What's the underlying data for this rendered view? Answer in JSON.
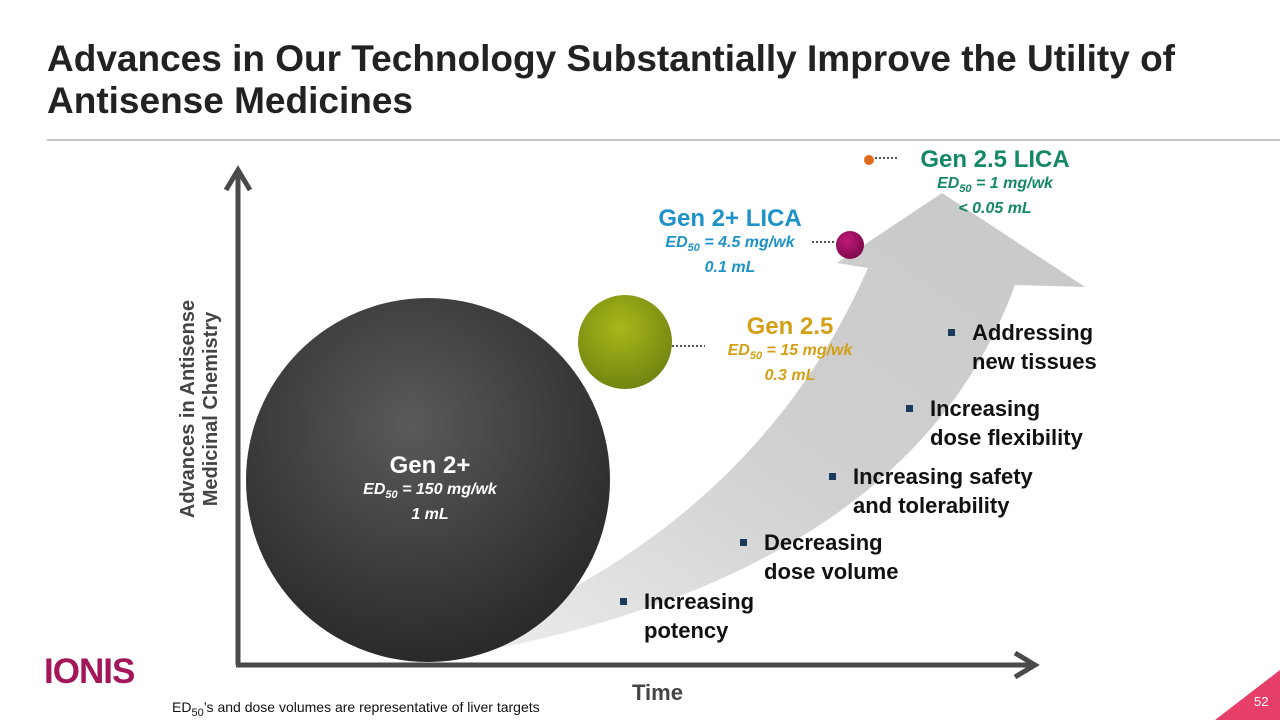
{
  "title": "Advances in Our Technology Substantially Improve the Utility of Antisense Medicines",
  "axes": {
    "y_label": "Advances in Antisense Medicinal Chemistry",
    "x_label": "Time"
  },
  "generations": [
    {
      "name": "Gen 2+",
      "ed50_prefix": "ED",
      "ed50_sub": "50",
      "ed50_value": " = 150 mg/wk",
      "volume": "1 mL",
      "color": "#ffffff",
      "circle_color": "#3c3c3e"
    },
    {
      "name": "Gen 2.5",
      "ed50_prefix": "ED",
      "ed50_sub": "50",
      "ed50_value": " = 15 mg/wk",
      "volume": "0.3 mL",
      "color": "#d4a017",
      "circle_color": "#8fa312"
    },
    {
      "name": "Gen 2+ LICA",
      "ed50_prefix": "ED",
      "ed50_sub": "50",
      "ed50_value": " = 4.5 mg/wk",
      "volume": "0.1 mL",
      "color": "#1f93c9",
      "circle_color": "#9a0a5a"
    },
    {
      "name": "Gen 2.5 LICA",
      "ed50_prefix": "ED",
      "ed50_sub": "50",
      "ed50_value": " = 1 mg/wk",
      "volume": "< 0.05 mL",
      "color": "#17876a",
      "circle_color": "#e06a1a"
    }
  ],
  "bullets": [
    {
      "line1": "Increasing",
      "line2": "potency"
    },
    {
      "line1": "Decreasing",
      "line2": "dose volume"
    },
    {
      "line1": "Increasing safety",
      "line2": "and tolerability"
    },
    {
      "line1": "Increasing",
      "line2": "dose flexibility"
    },
    {
      "line1": "Addressing",
      "line2": "new tissues"
    }
  ],
  "footnote": {
    "prefix": "ED",
    "sub": "50",
    "text": "’s and dose volumes are representative of liver targets"
  },
  "logo": "IONIS",
  "page_number": "52",
  "accent_color": "#a3175a"
}
